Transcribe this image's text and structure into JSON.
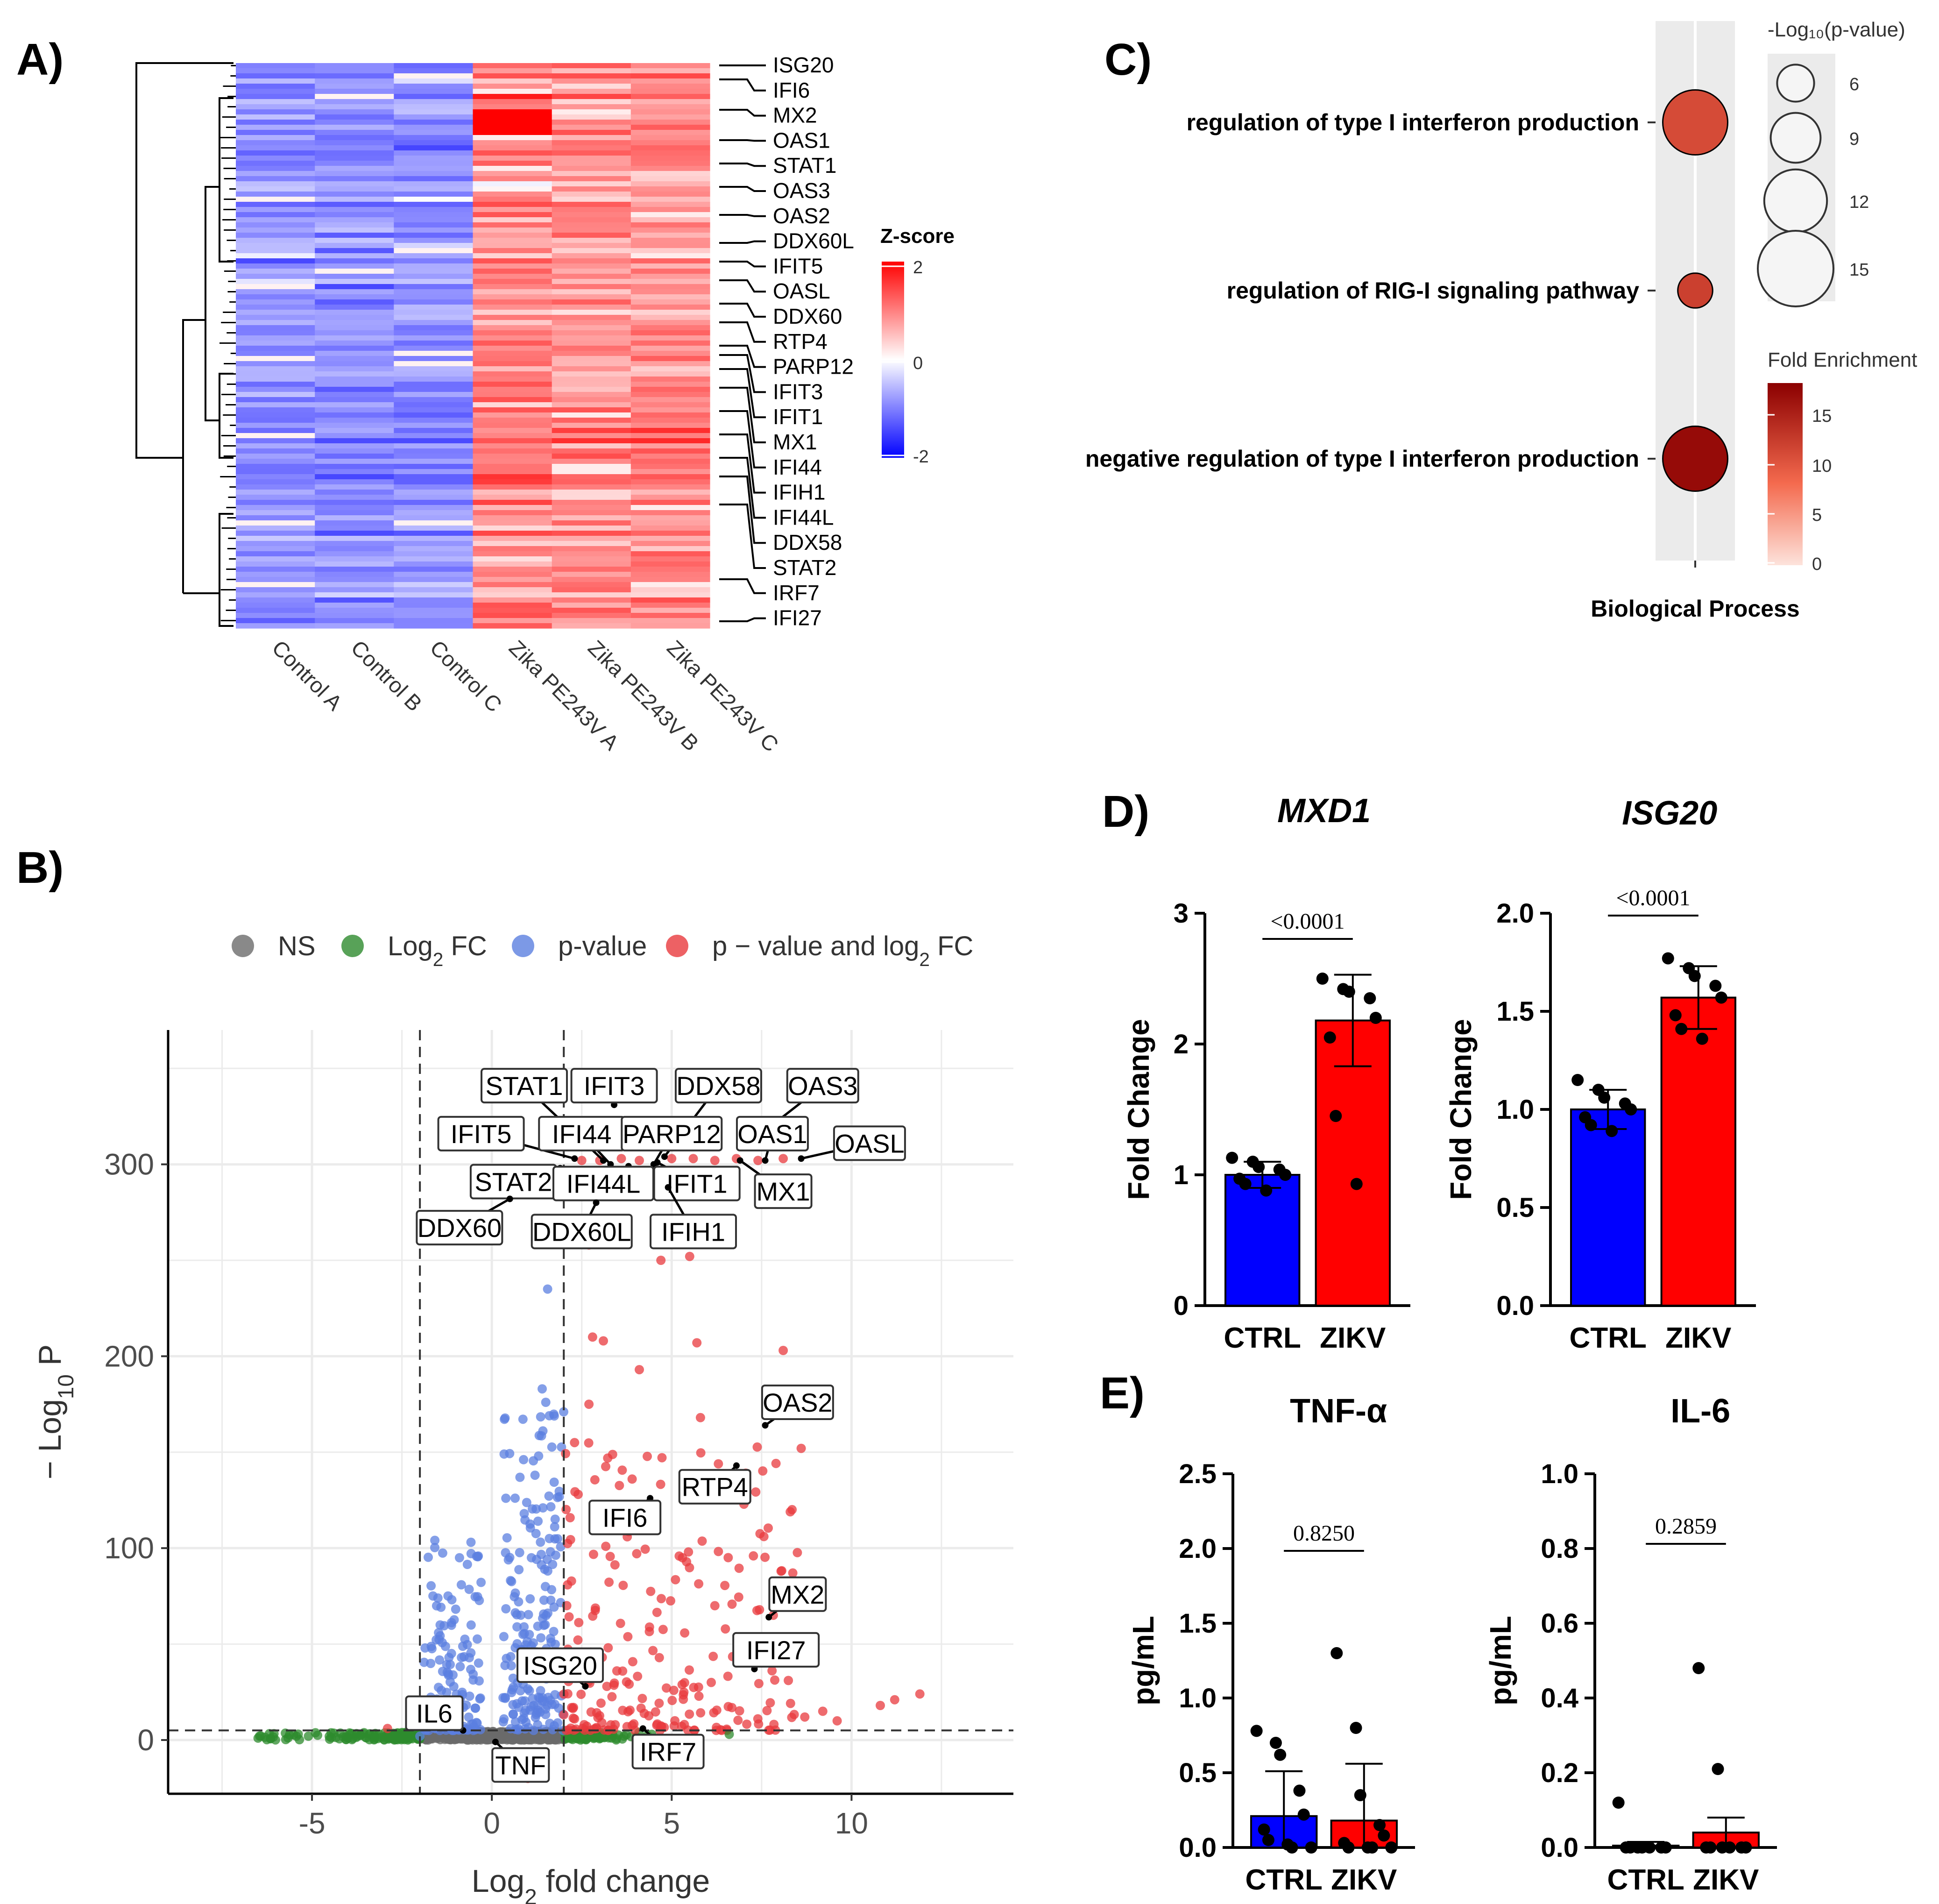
{
  "panels": {
    "A": "A)",
    "B": "B)",
    "C": "C)",
    "D": "D)",
    "E": "E)"
  },
  "colors": {
    "ns": "#6b6b6b",
    "log2fc": "#2e8b2e",
    "pvalue": "#5b7fe0",
    "both": "#e8393d",
    "ctrl_bar": "#0000ff",
    "zikv_bar": "#ff0000",
    "enrich_low": "#fde3dc",
    "enrich_high": "#8b0000"
  },
  "chart_data": [
    {
      "id": "A",
      "type": "heatmap",
      "samples": [
        "Control A",
        "Control B",
        "Control C",
        "Zika PE243V A",
        "Zika PE243V B",
        "Zika PE243V C"
      ],
      "genes": [
        "ISG20",
        "IFI6",
        "MX2",
        "OAS1",
        "STAT1",
        "OAS3",
        "OAS2",
        "DDX60L",
        "IFIT5",
        "OASL",
        "DDX60",
        "RTP4",
        "PARP12",
        "IFIT3",
        "IFIT1",
        "MX1",
        "IFI44",
        "IFIH1",
        "IFI44L",
        "DDX58",
        "STAT2",
        "IRF7",
        "IFI27"
      ],
      "legend_title": "Z-score",
      "legend_ticks": [
        "2",
        "0",
        "-2"
      ],
      "zlim": [
        -2,
        2
      ]
    },
    {
      "id": "B",
      "type": "scatter",
      "title": "",
      "xlabel_pre": "Log",
      "xlabel_sub": "2",
      "xlabel_post": " fold change",
      "ylabel_pre": "− Log",
      "ylabel_sub": "10",
      "ylabel_post": " P",
      "xlim": [
        -9,
        14.5
      ],
      "ylim": [
        -28,
        370
      ],
      "xticks": [
        "-5",
        "0",
        "5",
        "10"
      ],
      "xtick_values": [
        -5,
        0,
        5,
        10
      ],
      "yticks": [
        "0",
        "100",
        "200",
        "300"
      ],
      "ytick_values": [
        0,
        100,
        200,
        300
      ],
      "fc_cutoff": 2,
      "p_cutoff": 5,
      "legend": [
        {
          "key": "ns",
          "label": "NS"
        },
        {
          "key": "log2fc",
          "label_pre": "Log",
          "label_sub": "2",
          "label_post": " FC"
        },
        {
          "key": "pvalue",
          "label": "p-value"
        },
        {
          "key": "both",
          "label_pre": "p − value and log",
          "label_sub": "2",
          "label_post": " FC"
        }
      ],
      "labels": [
        {
          "text": "STAT1",
          "x": 3.1,
          "y": 302,
          "lx": 0.9,
          "ly": 341
        },
        {
          "text": "IFIT3",
          "x": 3.4,
          "y": 331,
          "lx": 3.4,
          "ly": 341
        },
        {
          "text": "DDX58",
          "x": 4.8,
          "y": 304,
          "lx": 6.3,
          "ly": 341
        },
        {
          "text": "OAS3",
          "x": 7.9,
          "y": 322,
          "lx": 9.2,
          "ly": 341
        },
        {
          "text": "IFIT5",
          "x": 2.3,
          "y": 303,
          "lx": -0.3,
          "ly": 316
        },
        {
          "text": "IFI44",
          "x": 3.3,
          "y": 300,
          "lx": 2.5,
          "ly": 316
        },
        {
          "text": "PARP12",
          "x": 4.5,
          "y": 300,
          "lx": 5.0,
          "ly": 316
        },
        {
          "text": "OAS1",
          "x": 7.6,
          "y": 302,
          "lx": 7.8,
          "ly": 316
        },
        {
          "text": "OASL",
          "x": 8.6,
          "y": 303,
          "lx": 10.5,
          "ly": 311
        },
        {
          "text": "STAT2",
          "x": 1.9,
          "y": 298,
          "lx": 0.6,
          "ly": 291
        },
        {
          "text": "IFI44L",
          "x": 3.8,
          "y": 299,
          "lx": 3.1,
          "ly": 290
        },
        {
          "text": "IFIT1",
          "x": 4.6,
          "y": 301,
          "lx": 5.7,
          "ly": 290
        },
        {
          "text": "MX1",
          "x": 6.9,
          "y": 302,
          "lx": 8.1,
          "ly": 286
        },
        {
          "text": "DDX60",
          "x": 0.5,
          "y": 282,
          "lx": -0.9,
          "ly": 267
        },
        {
          "text": "DDX60L",
          "x": 2.9,
          "y": 280,
          "lx": 2.5,
          "ly": 265
        },
        {
          "text": "IFIH1",
          "x": 4.9,
          "y": 288,
          "lx": 5.6,
          "ly": 265
        },
        {
          "text": "OAS2",
          "x": 7.6,
          "y": 164,
          "lx": 8.5,
          "ly": 176
        },
        {
          "text": "RTP4",
          "x": 6.8,
          "y": 143,
          "lx": 6.2,
          "ly": 132
        },
        {
          "text": "IFI6",
          "x": 4.4,
          "y": 126,
          "lx": 3.7,
          "ly": 116
        },
        {
          "text": "MX2",
          "x": 7.7,
          "y": 64,
          "lx": 8.5,
          "ly": 76
        },
        {
          "text": "IFI27",
          "x": 7.3,
          "y": 37,
          "lx": 7.9,
          "ly": 47
        },
        {
          "text": "ISG20",
          "x": 2.6,
          "y": 28,
          "lx": 1.9,
          "ly": 39
        },
        {
          "text": "IL6",
          "x": -0.8,
          "y": 5,
          "lx": -1.6,
          "ly": 14
        },
        {
          "text": "TNF",
          "x": 0.1,
          "y": -1,
          "lx": 0.8,
          "ly": -13
        },
        {
          "text": "IRF7",
          "x": 4.2,
          "y": 6,
          "lx": 4.9,
          "ly": -6
        }
      ]
    },
    {
      "id": "C",
      "type": "scatter",
      "xlabel": "Biological Process",
      "terms": [
        {
          "label": "regulation of type I interferon production",
          "neglog10p": 12.5,
          "fold_enrichment": 11
        },
        {
          "label": "regulation of RIG-I signaling pathway",
          "neglog10p": 5.5,
          "fold_enrichment": 12
        },
        {
          "label": "negative regulation of type I interferon production",
          "neglog10p": 12.5,
          "fold_enrichment": 17
        }
      ],
      "size_legend_title": "-Log₁₀(p-value)",
      "size_legend": [
        6,
        9,
        12,
        15
      ],
      "size_legend_labels": [
        "6",
        "9",
        "12",
        "15"
      ],
      "color_legend_title": "Fold Enrichment",
      "color_legend_ticks": [
        "15",
        "10",
        "5",
        "0"
      ],
      "color_range": [
        0,
        18
      ]
    },
    {
      "id": "D1",
      "type": "bar",
      "title": "MXD1",
      "ylabel": "Fold Change",
      "categories": [
        "CTRL",
        "ZIKV"
      ],
      "values": [
        1.0,
        2.18
      ],
      "sd": [
        0.1,
        0.35
      ],
      "ylim": [
        0,
        3
      ],
      "yticks": [
        "0",
        "1",
        "2",
        "3"
      ],
      "ytick_values": [
        0,
        1,
        2,
        3
      ],
      "pvalue": "<0.0001",
      "points": [
        [
          1.13,
          1.1,
          1.06,
          1.04,
          1.0,
          0.97,
          0.93,
          0.88
        ],
        [
          2.5,
          2.42,
          2.4,
          2.35,
          2.2,
          2.05,
          1.45,
          0.93
        ]
      ]
    },
    {
      "id": "D2",
      "type": "bar",
      "title": "ISG20",
      "ylabel": "Fold Change",
      "categories": [
        "CTRL",
        "ZIKV"
      ],
      "values": [
        1.0,
        1.57
      ],
      "sd": [
        0.1,
        0.16
      ],
      "ylim": [
        0,
        2
      ],
      "yticks": [
        "0.0",
        "0.5",
        "1.0",
        "1.5",
        "2.0"
      ],
      "ytick_values": [
        0,
        0.5,
        1.0,
        1.5,
        2.0
      ],
      "pvalue": "<0.0001",
      "points": [
        [
          1.15,
          1.1,
          1.06,
          1.03,
          1.0,
          0.96,
          0.92,
          0.89
        ],
        [
          1.77,
          1.72,
          1.68,
          1.63,
          1.57,
          1.48,
          1.41,
          1.36
        ]
      ]
    },
    {
      "id": "E1",
      "type": "bar",
      "title": "TNF-α",
      "ylabel": "pg/mL",
      "categories": [
        "CTRL",
        "ZIKV"
      ],
      "values": [
        0.21,
        0.18
      ],
      "sd": [
        0.3,
        0.38
      ],
      "ylim": [
        0,
        2.5
      ],
      "yticks": [
        "0.0",
        "0.5",
        "1.0",
        "1.5",
        "2.0",
        "2.5"
      ],
      "ytick_values": [
        0,
        0.5,
        1.0,
        1.5,
        2.0,
        2.5
      ],
      "pvalue": "0.8250",
      "points": [
        [
          0.78,
          0.7,
          0.62,
          0.38,
          0.22,
          0.12,
          0.05,
          0.02,
          0.0,
          0.0
        ],
        [
          1.3,
          0.8,
          0.35,
          0.15,
          0.08,
          0.03,
          0.0,
          0.0,
          0.0,
          0.0
        ]
      ]
    },
    {
      "id": "E2",
      "type": "bar",
      "title": "IL-6",
      "ylabel": "pg/mL",
      "categories": [
        "CTRL",
        "ZIKV"
      ],
      "values": [
        0.005,
        0.04
      ],
      "sd": [
        0.01,
        0.04
      ],
      "ylim": [
        0,
        1.0
      ],
      "yticks": [
        "0.0",
        "0.2",
        "0.4",
        "0.6",
        "0.8",
        "1.0"
      ],
      "ytick_values": [
        0,
        0.2,
        0.4,
        0.6,
        0.8,
        1.0
      ],
      "pvalue": "0.2859",
      "points": [
        [
          0.12,
          0.0,
          0.0,
          0.0,
          0.0,
          0.0,
          0.0,
          0.0
        ],
        [
          0.48,
          0.21,
          0.0,
          0.0,
          0.0,
          0.0,
          0.0,
          0.0
        ]
      ]
    }
  ]
}
